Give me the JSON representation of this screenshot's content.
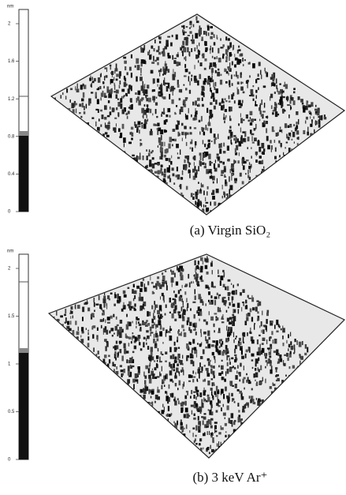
{
  "panels": [
    {
      "scale_unit": "nm",
      "scale_ticks": [
        "2",
        "1.6",
        "1.2",
        "0.8",
        "0.4",
        "0"
      ],
      "caption": "(a) Virgin SiO₂"
    },
    {
      "scale_unit": "nm",
      "scale_ticks": [
        "2",
        "1.5",
        "1",
        "0.5",
        "0"
      ],
      "caption": "(b) 3 keV Ar⁺"
    }
  ]
}
